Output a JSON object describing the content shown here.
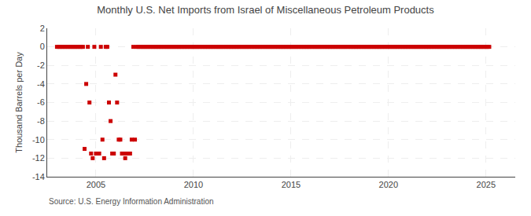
{
  "chart_data": {
    "type": "scatter",
    "title": "Monthly U.S. Net Imports from Israel of Miscellaneous Petroleum Products",
    "y_label": "Thousand Barrels per Day",
    "annotations": [
      "Source: U.S. Energy Information Administration"
    ],
    "color": "#cc0000",
    "marker": "square",
    "grid": true,
    "xlim": [
      2002.5,
      2026.5
    ],
    "xticks": [
      2005,
      2010,
      2015,
      2020,
      2025
    ],
    "ylim": [
      -14,
      2
    ],
    "yticks": [
      2,
      0,
      -2,
      -4,
      -6,
      -8,
      -10,
      -12,
      -14
    ],
    "x": [
      2003.0,
      2003.083,
      2003.167,
      2003.25,
      2003.333,
      2003.417,
      2003.5,
      2003.583,
      2003.667,
      2003.75,
      2003.833,
      2003.917,
      2004.0,
      2004.083,
      2004.167,
      2004.25,
      2004.333,
      2004.417,
      2004.5,
      2004.583,
      2004.667,
      2004.75,
      2004.833,
      2004.917,
      2005.0,
      2005.083,
      2005.167,
      2005.25,
      2005.333,
      2005.417,
      2005.5,
      2005.583,
      2005.667,
      2005.75,
      2005.833,
      2005.917,
      2006.0,
      2006.083,
      2006.167,
      2006.25,
      2006.333,
      2006.417,
      2006.5,
      2006.583,
      2006.667,
      2006.75,
      2006.833,
      2006.917,
      2007.0,
      2007.083,
      2007.167,
      2007.25,
      2007.333,
      2007.417,
      2007.5,
      2007.583,
      2007.667,
      2007.75,
      2007.833,
      2007.917,
      2008.0,
      2008.083,
      2008.167,
      2008.25,
      2008.333,
      2008.417,
      2008.5,
      2008.583,
      2008.667,
      2008.75,
      2008.833,
      2008.917,
      2009.0,
      2009.083,
      2009.167,
      2009.25,
      2009.333,
      2009.417,
      2009.5,
      2009.583,
      2009.667,
      2009.75,
      2009.833,
      2009.917,
      2010.0,
      2010.083,
      2010.167,
      2010.25,
      2010.333,
      2010.417,
      2010.5,
      2010.583,
      2010.667,
      2010.75,
      2010.833,
      2010.917,
      2011.0,
      2011.083,
      2011.167,
      2011.25,
      2011.333,
      2011.417,
      2011.5,
      2011.583,
      2011.667,
      2011.75,
      2011.833,
      2011.917,
      2012.0,
      2012.083,
      2012.167,
      2012.25,
      2012.333,
      2012.417,
      2012.5,
      2012.583,
      2012.667,
      2012.75,
      2012.833,
      2012.917,
      2013.0,
      2013.083,
      2013.167,
      2013.25,
      2013.333,
      2013.417,
      2013.5,
      2013.583,
      2013.667,
      2013.75,
      2013.833,
      2013.917,
      2014.0,
      2014.083,
      2014.167,
      2014.25,
      2014.333,
      2014.417,
      2014.5,
      2014.583,
      2014.667,
      2014.75,
      2014.833,
      2014.917,
      2015.0,
      2015.083,
      2015.167,
      2015.25,
      2015.333,
      2015.417,
      2015.5,
      2015.583,
      2015.667,
      2015.75,
      2015.833,
      2015.917,
      2016.0,
      2016.083,
      2016.167,
      2016.25,
      2016.333,
      2016.417,
      2016.5,
      2016.583,
      2016.667,
      2016.75,
      2016.833,
      2016.917,
      2017.0,
      2017.083,
      2017.167,
      2017.25,
      2017.333,
      2017.417,
      2017.5,
      2017.583,
      2017.667,
      2017.75,
      2017.833,
      2017.917,
      2018.0,
      2018.083,
      2018.167,
      2018.25,
      2018.333,
      2018.417,
      2018.5,
      2018.583,
      2018.667,
      2018.75,
      2018.833,
      2018.917,
      2019.0,
      2019.083,
      2019.167,
      2019.25,
      2019.333,
      2019.417,
      2019.5,
      2019.583,
      2019.667,
      2019.75,
      2019.833,
      2019.917,
      2020.0,
      2020.083,
      2020.167,
      2020.25,
      2020.333,
      2020.417,
      2020.5,
      2020.583,
      2020.667,
      2020.75,
      2020.833,
      2020.917,
      2021.0,
      2021.083,
      2021.167,
      2021.25,
      2021.333,
      2021.417,
      2021.5,
      2021.583,
      2021.667,
      2021.75,
      2021.833,
      2021.917,
      2022.0,
      2022.083,
      2022.167,
      2022.25,
      2022.333,
      2022.417,
      2022.5,
      2022.583,
      2022.667,
      2022.75,
      2022.833,
      2022.917,
      2023.0,
      2023.083,
      2023.167,
      2023.25,
      2023.333,
      2023.417,
      2023.5,
      2023.583,
      2023.667,
      2023.75,
      2023.833,
      2023.917,
      2024.0,
      2024.083,
      2024.167,
      2024.25,
      2024.333,
      2024.417,
      2024.5,
      2024.583,
      2024.667,
      2024.75,
      2024.833,
      2024.917,
      2025.0,
      2025.083,
      2025.167
    ],
    "values": [
      0,
      0,
      0,
      0,
      0,
      0,
      0,
      0,
      0,
      0,
      0,
      0,
      0,
      0,
      0,
      0,
      0,
      -11.0,
      -4.0,
      0,
      -6.0,
      -11.5,
      -12.0,
      0,
      -11.5,
      -11.5,
      -11.5,
      0,
      -10.0,
      -12.0,
      0,
      0,
      -6.0,
      -8.0,
      -11.5,
      -11.5,
      -3.0,
      -6.0,
      -10.0,
      -10.0,
      -11.5,
      -11.5,
      -12.0,
      -11.5,
      -11.5,
      -11.5,
      -10.0,
      0,
      -10.0,
      0,
      0,
      0,
      0,
      0,
      0,
      0,
      0,
      0,
      0,
      0,
      0,
      0,
      0,
      0,
      0,
      0,
      0,
      0,
      0,
      0,
      0,
      0,
      0,
      0,
      0,
      0,
      0,
      0,
      0,
      0,
      0,
      0,
      0,
      0,
      0,
      0,
      0,
      0,
      0,
      0,
      0,
      0,
      0,
      0,
      0,
      0,
      0,
      0,
      0,
      0,
      0,
      0,
      0,
      0,
      0,
      0,
      0,
      0,
      0,
      0,
      0,
      0,
      0,
      0,
      0,
      0,
      0,
      0,
      0,
      0,
      0,
      0,
      0,
      0,
      0,
      0,
      0,
      0,
      0,
      0,
      0,
      0,
      0,
      0,
      0,
      0,
      0,
      0,
      0,
      0,
      0,
      0,
      0,
      0,
      0,
      0,
      0,
      0,
      0,
      0,
      0,
      0,
      0,
      0,
      0,
      0,
      0,
      0,
      0,
      0,
      0,
      0,
      0,
      0,
      0,
      0,
      0,
      0,
      0,
      0,
      0,
      0,
      0,
      0,
      0,
      0,
      0,
      0,
      0,
      0,
      0,
      0,
      0,
      0,
      0,
      0,
      0,
      0,
      0,
      0,
      0,
      0,
      0,
      0,
      0,
      0,
      0,
      0,
      0,
      0,
      0,
      0,
      0,
      0,
      0,
      0,
      0,
      0,
      0,
      0,
      0,
      0,
      0,
      0,
      0,
      0,
      0,
      0,
      0,
      0,
      0,
      0,
      0,
      0,
      0,
      0,
      0,
      0,
      0,
      0,
      0,
      0,
      0,
      0,
      0,
      0,
      0,
      0,
      0,
      0,
      0,
      0,
      0,
      0,
      0,
      0,
      0,
      0,
      0,
      0,
      0,
      0,
      0,
      0,
      0,
      0,
      0,
      0,
      0,
      0,
      0,
      0,
      0,
      0,
      0,
      0,
      0
    ]
  }
}
